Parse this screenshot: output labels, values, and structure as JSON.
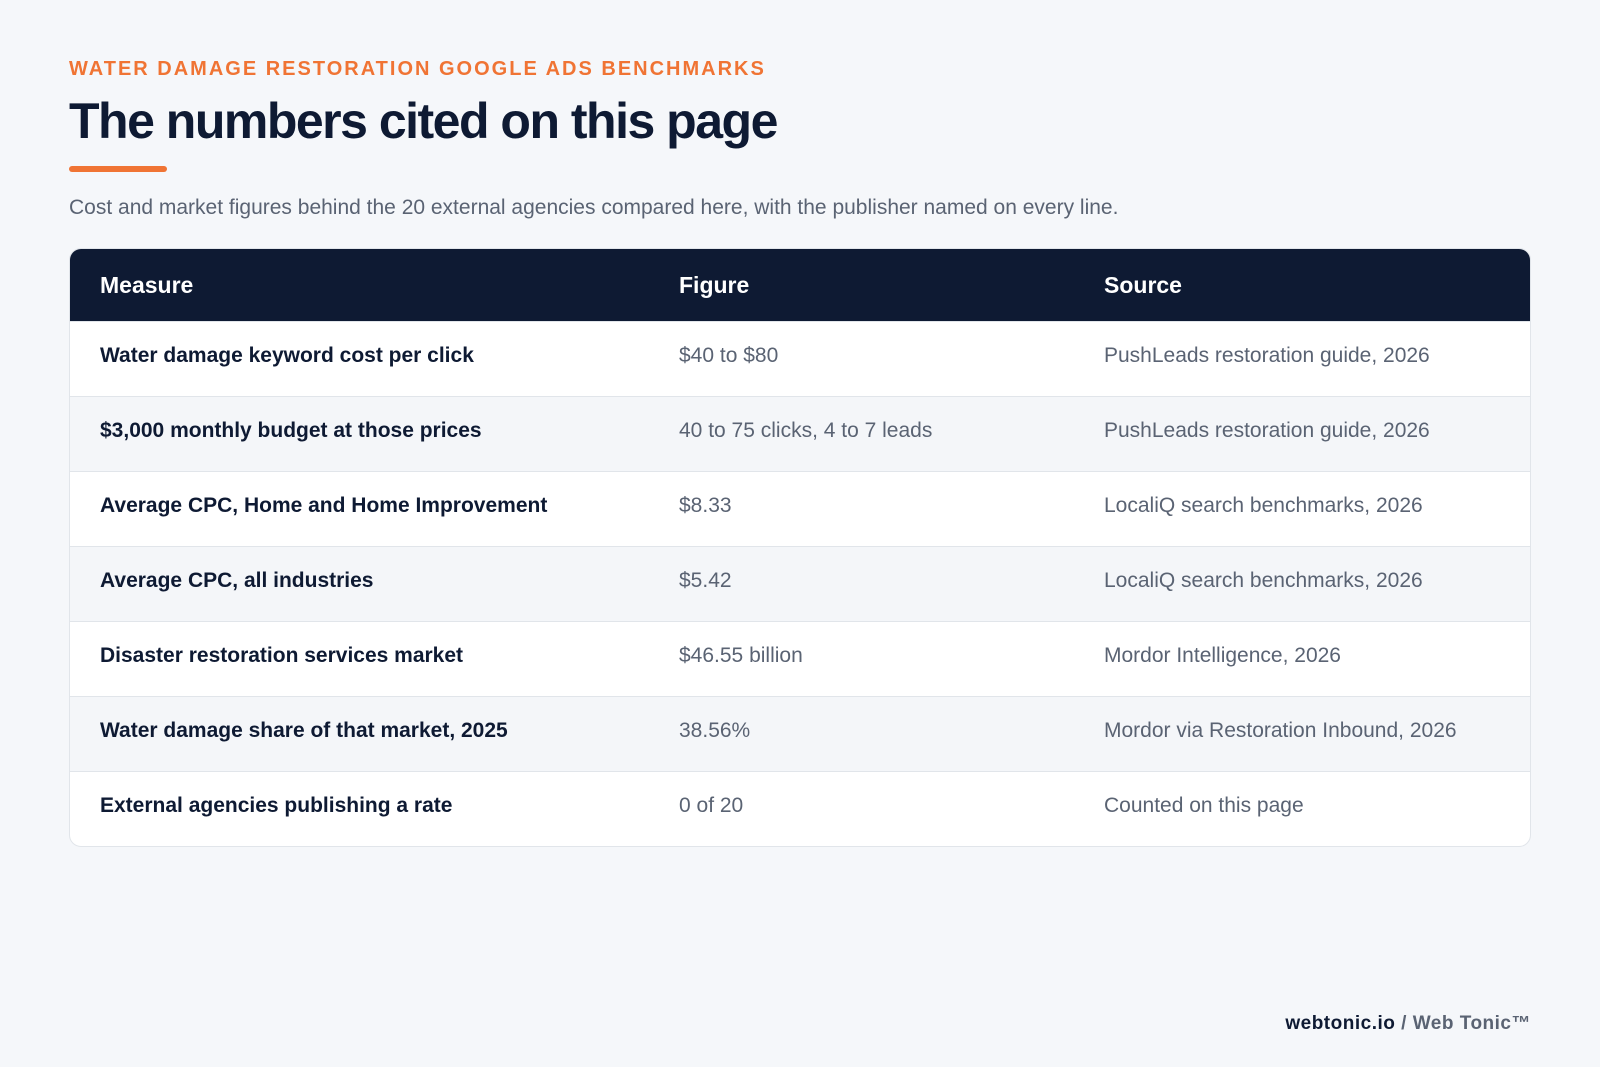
{
  "header": {
    "eyebrow": "WATER DAMAGE RESTORATION GOOGLE ADS BENCHMARKS",
    "title": "The numbers cited on this page",
    "subtitle": "Cost and market figures behind the 20 external agencies compared here, with the publisher named on every line."
  },
  "table": {
    "columns": [
      "Measure",
      "Figure",
      "Source"
    ],
    "rows": [
      [
        "Water damage keyword cost per click",
        "$40 to $80",
        "PushLeads restoration guide, 2026"
      ],
      [
        "$3,000 monthly budget at those prices",
        "40 to 75 clicks, 4 to 7 leads",
        "PushLeads restoration guide, 2026"
      ],
      [
        "Average CPC, Home and Home Improvement",
        "$8.33",
        "LocaliQ search benchmarks, 2026"
      ],
      [
        "Average CPC, all industries",
        "$5.42",
        "LocaliQ search benchmarks, 2026"
      ],
      [
        "Disaster restoration services market",
        "$46.55 billion",
        "Mordor Intelligence, 2026"
      ],
      [
        "Water damage share of that market, 2025",
        "38.56%",
        "Mordor via Restoration Inbound, 2026"
      ],
      [
        "External agencies publishing a rate",
        "0 of 20",
        "Counted on this page"
      ]
    ]
  },
  "footer": {
    "site": "webtonic.io",
    "separator": "/",
    "brand": "Web Tonic™"
  }
}
